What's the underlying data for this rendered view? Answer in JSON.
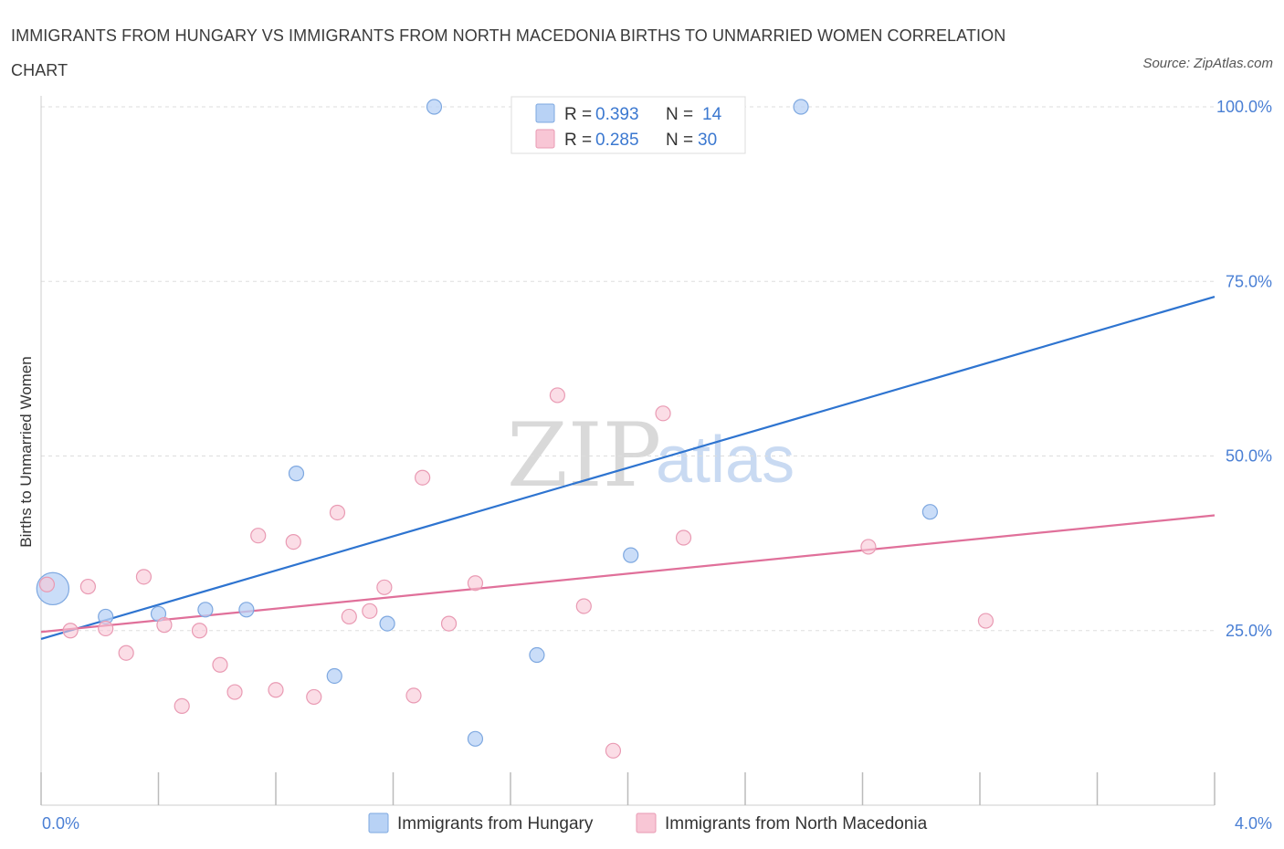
{
  "title": "IMMIGRANTS FROM HUNGARY VS IMMIGRANTS FROM NORTH MACEDONIA BIRTHS TO UNMARRIED WOMEN CORRELATION CHART",
  "source": "Source: ZipAtlas.com",
  "watermark": {
    "zip": "ZIP",
    "atlas": "atlas"
  },
  "colors": {
    "hungary_fill": "#b8d2f5",
    "hungary_stroke": "#7ea8e0",
    "hungary_line": "#2e74d0",
    "macedonia_fill": "#f8c6d5",
    "macedonia_stroke": "#e99ab3",
    "macedonia_line": "#e0709a",
    "grid": "#dddddd",
    "tick_text": "#4a7fd4"
  },
  "legend": {
    "rows": [
      {
        "r_label": "R = ",
        "r_value": "0.393",
        "n_label": "N = ",
        "n_value": "14"
      },
      {
        "r_label": "R = ",
        "r_value": "0.285",
        "n_label": "N = ",
        "n_value": "30"
      }
    ]
  },
  "chart_data": {
    "type": "scatter",
    "title": "IMMIGRANTS FROM HUNGARY VS IMMIGRANTS FROM NORTH MACEDONIA BIRTHS TO UNMARRIED WOMEN CORRELATION CHART",
    "xlabel": "",
    "ylabel": "Births to Unmarried Women",
    "xlim": [
      0,
      4
    ],
    "ylim": [
      0,
      102
    ],
    "x_tick_labels": [
      {
        "value": 0,
        "label": "0.0%"
      },
      {
        "value": 4,
        "label": "4.0%"
      }
    ],
    "y_tick_labels": [
      {
        "value": 100,
        "label": "100.0%"
      },
      {
        "value": 75,
        "label": "75.0%"
      },
      {
        "value": 50,
        "label": "50.0%"
      },
      {
        "value": 25,
        "label": "25.0%"
      }
    ],
    "grid": true,
    "legend_position": "top-center",
    "series": [
      {
        "name": "Immigrants from Hungary",
        "R": 0.393,
        "N": 14,
        "trend": {
          "x": [
            0,
            4
          ],
          "y": [
            23.8,
            72.8
          ]
        },
        "points": [
          {
            "x": 0.04,
            "y": 31.0,
            "size": 2.2
          },
          {
            "x": 0.22,
            "y": 27.0,
            "size": 1
          },
          {
            "x": 0.4,
            "y": 27.4,
            "size": 1
          },
          {
            "x": 0.56,
            "y": 28.0,
            "size": 1
          },
          {
            "x": 0.7,
            "y": 28.0,
            "size": 1
          },
          {
            "x": 0.87,
            "y": 47.5,
            "size": 1
          },
          {
            "x": 1.0,
            "y": 18.5,
            "size": 1
          },
          {
            "x": 1.18,
            "y": 26.0,
            "size": 1
          },
          {
            "x": 1.34,
            "y": 100.0,
            "size": 1
          },
          {
            "x": 1.48,
            "y": 9.5,
            "size": 1
          },
          {
            "x": 1.69,
            "y": 21.5,
            "size": 1
          },
          {
            "x": 2.01,
            "y": 35.8,
            "size": 1
          },
          {
            "x": 2.59,
            "y": 100.0,
            "size": 1
          },
          {
            "x": 3.03,
            "y": 42.0,
            "size": 1
          }
        ]
      },
      {
        "name": "Immigrants from North Macedonia",
        "R": 0.285,
        "N": 30,
        "trend": {
          "x": [
            0,
            4
          ],
          "y": [
            24.8,
            41.5
          ]
        },
        "points": [
          {
            "x": 0.02,
            "y": 31.6
          },
          {
            "x": 0.1,
            "y": 25.0
          },
          {
            "x": 0.16,
            "y": 31.3
          },
          {
            "x": 0.22,
            "y": 25.3
          },
          {
            "x": 0.29,
            "y": 21.8
          },
          {
            "x": 0.35,
            "y": 32.7
          },
          {
            "x": 0.42,
            "y": 25.8
          },
          {
            "x": 0.48,
            "y": 14.2
          },
          {
            "x": 0.54,
            "y": 25.0
          },
          {
            "x": 0.61,
            "y": 20.1
          },
          {
            "x": 0.66,
            "y": 16.2
          },
          {
            "x": 0.74,
            "y": 38.6
          },
          {
            "x": 0.8,
            "y": 16.5
          },
          {
            "x": 0.86,
            "y": 37.7
          },
          {
            "x": 0.93,
            "y": 15.5
          },
          {
            "x": 1.01,
            "y": 41.9
          },
          {
            "x": 1.05,
            "y": 27.0
          },
          {
            "x": 1.12,
            "y": 27.8
          },
          {
            "x": 1.17,
            "y": 31.2
          },
          {
            "x": 1.27,
            "y": 15.7
          },
          {
            "x": 1.3,
            "y": 46.9
          },
          {
            "x": 1.39,
            "y": 26.0
          },
          {
            "x": 1.48,
            "y": 31.8
          },
          {
            "x": 1.76,
            "y": 58.7
          },
          {
            "x": 1.85,
            "y": 28.5
          },
          {
            "x": 1.95,
            "y": 7.8
          },
          {
            "x": 2.12,
            "y": 56.1
          },
          {
            "x": 2.19,
            "y": 38.3
          },
          {
            "x": 2.82,
            "y": 37.0
          },
          {
            "x": 3.22,
            "y": 26.4
          }
        ]
      }
    ]
  }
}
